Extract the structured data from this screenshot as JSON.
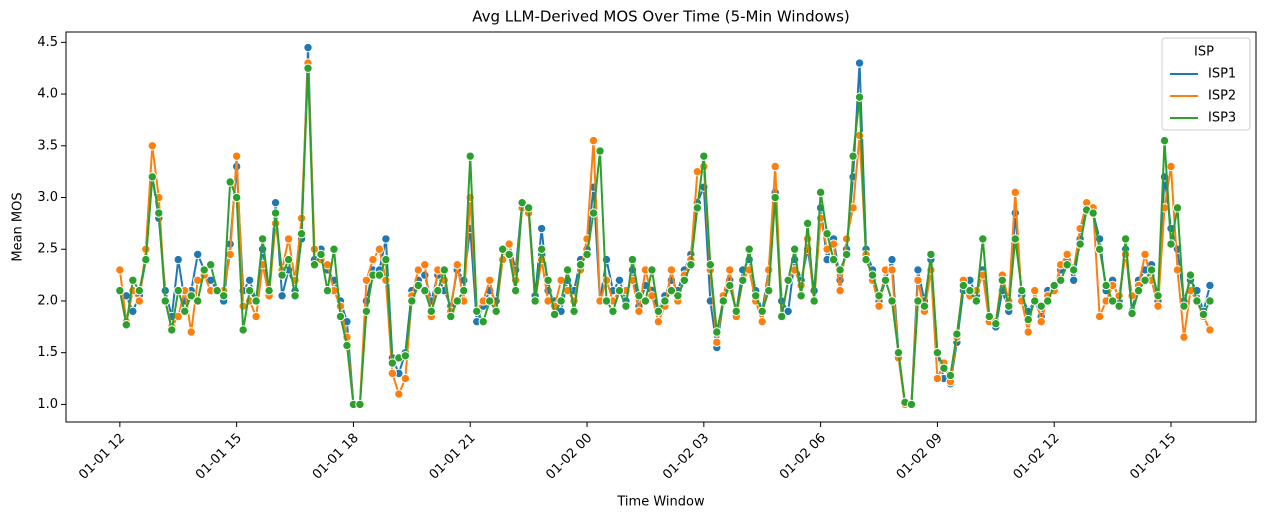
{
  "chart_data": {
    "type": "line",
    "title": "Avg LLM-Derived MOS Over Time (5-Min Windows)",
    "x_label": "Time Window",
    "y_label": "Mean MOS",
    "legend_title": "ISP",
    "legend": "upper right",
    "grid": false,
    "xlim": [
      637,
      2471
    ],
    "xticks": [
      {
        "value": 720,
        "label": "01-01 12"
      },
      {
        "value": 900,
        "label": "01-01 15"
      },
      {
        "value": 1080,
        "label": "01-01 18"
      },
      {
        "value": 1260,
        "label": "01-01 21"
      },
      {
        "value": 1440,
        "label": "01-02 00"
      },
      {
        "value": 1620,
        "label": "01-02 03"
      },
      {
        "value": 1800,
        "label": "01-02 06"
      },
      {
        "value": 1980,
        "label": "01-02 09"
      },
      {
        "value": 2160,
        "label": "01-02 12"
      },
      {
        "value": 2340,
        "label": "01-02 15"
      }
    ],
    "ylim": [
      0.83,
      4.6
    ],
    "yticks": [
      {
        "value": 1,
        "label": "1.0"
      },
      {
        "value": 1.5,
        "label": "1.5"
      },
      {
        "value": 2,
        "label": "2.0"
      },
      {
        "value": 2.5,
        "label": "2.5"
      },
      {
        "value": 3,
        "label": "3.0"
      },
      {
        "value": 3.5,
        "label": "3.5"
      },
      {
        "value": 4,
        "label": "4.0"
      },
      {
        "value": 4.5,
        "label": "4.5"
      }
    ],
    "x": [
      720,
      730,
      740,
      750,
      760,
      770,
      780,
      790,
      800,
      810,
      820,
      830,
      840,
      850,
      860,
      870,
      880,
      890,
      900,
      910,
      920,
      930,
      940,
      950,
      960,
      970,
      980,
      990,
      1000,
      1010,
      1020,
      1030,
      1040,
      1050,
      1060,
      1070,
      1080,
      1090,
      1100,
      1110,
      1120,
      1130,
      1140,
      1150,
      1160,
      1170,
      1180,
      1190,
      1200,
      1210,
      1220,
      1230,
      1240,
      1250,
      1260,
      1270,
      1280,
      1290,
      1300,
      1310,
      1320,
      1330,
      1340,
      1350,
      1360,
      1370,
      1380,
      1390,
      1400,
      1410,
      1420,
      1430,
      1440,
      1450,
      1460,
      1470,
      1480,
      1490,
      1500,
      1510,
      1520,
      1530,
      1540,
      1550,
      1560,
      1570,
      1580,
      1590,
      1600,
      1610,
      1620,
      1630,
      1640,
      1650,
      1660,
      1670,
      1680,
      1690,
      1700,
      1710,
      1720,
      1730,
      1740,
      1750,
      1760,
      1770,
      1780,
      1790,
      1800,
      1810,
      1820,
      1830,
      1840,
      1850,
      1860,
      1870,
      1880,
      1890,
      1900,
      1910,
      1920,
      1930,
      1940,
      1950,
      1960,
      1970,
      1980,
      1990,
      2000,
      2010,
      2020,
      2030,
      2040,
      2050,
      2060,
      2070,
      2080,
      2090,
      2100,
      2110,
      2120,
      2130,
      2140,
      2150,
      2160,
      2170,
      2180,
      2190,
      2200,
      2210,
      2220,
      2230,
      2240,
      2250,
      2260,
      2270,
      2280,
      2290,
      2300,
      2310,
      2320,
      2330,
      2340,
      2350,
      2360,
      2370,
      2380,
      2390,
      2400
    ],
    "series": [
      {
        "name": "ISP1",
        "color": "#1f77b4",
        "values": [
          2.1,
          2.05,
          1.9,
          2.05,
          2.4,
          3.2,
          2.8,
          2.1,
          1.85,
          2.4,
          2.0,
          2.1,
          2.45,
          2.3,
          2.2,
          2.1,
          2.0,
          2.55,
          3.3,
          2.1,
          2.2,
          2.0,
          2.5,
          2.1,
          2.95,
          2.05,
          2.3,
          2.1,
          2.6,
          4.45,
          2.4,
          2.5,
          2.3,
          2.2,
          2.0,
          1.8,
          1.0,
          1.0,
          2.0,
          2.3,
          2.3,
          2.6,
          1.45,
          1.3,
          1.5,
          2.1,
          2.2,
          2.25,
          2.0,
          2.25,
          2.1,
          1.95,
          2.3,
          2.2,
          2.7,
          1.8,
          1.95,
          2.1,
          2.0,
          2.5,
          2.55,
          2.3,
          2.95,
          2.9,
          2.05,
          2.7,
          2.1,
          2.0,
          1.9,
          2.2,
          2.1,
          2.4,
          2.5,
          3.1,
          2.0,
          2.4,
          2.1,
          2.2,
          2.0,
          2.3,
          1.95,
          2.15,
          2.1,
          1.9,
          2.05,
          2.2,
          2.1,
          2.3,
          2.45,
          2.95,
          3.1,
          2.0,
          1.55,
          2.0,
          2.2,
          1.9,
          2.3,
          2.4,
          2.1,
          1.9,
          2.3,
          3.05,
          2.0,
          1.9,
          2.4,
          2.2,
          2.5,
          2.1,
          2.9,
          2.4,
          2.6,
          2.2,
          2.5,
          3.2,
          4.3,
          2.5,
          2.3,
          2.0,
          2.2,
          2.4,
          1.5,
          1.0,
          1.0,
          2.3,
          2.0,
          2.4,
          1.5,
          1.25,
          1.2,
          1.6,
          2.1,
          2.2,
          2.05,
          2.3,
          1.8,
          1.75,
          2.1,
          1.9,
          2.85,
          2.05,
          1.9,
          2.0,
          1.85,
          2.1,
          2.1,
          2.3,
          2.4,
          2.2,
          2.6,
          2.9,
          2.85,
          2.6,
          2.1,
          2.2,
          2.0,
          2.5,
          1.9,
          2.2,
          2.3,
          2.35,
          2.0,
          3.2,
          2.7,
          2.5,
          2.0,
          2.2,
          2.1,
          1.9,
          2.15
        ]
      },
      {
        "name": "ISP2",
        "color": "#ff7f0e",
        "values": [
          2.3,
          1.8,
          2.1,
          2.0,
          2.5,
          3.5,
          3.0,
          2.0,
          1.75,
          1.85,
          2.1,
          1.7,
          2.2,
          2.25,
          2.1,
          2.1,
          2.1,
          2.45,
          3.4,
          1.95,
          2.0,
          1.85,
          2.35,
          2.05,
          2.75,
          2.3,
          2.6,
          2.2,
          2.8,
          4.3,
          2.5,
          2.4,
          2.35,
          2.1,
          1.95,
          1.65,
          1.0,
          1.0,
          2.2,
          2.4,
          2.5,
          2.2,
          1.3,
          1.1,
          1.25,
          2.05,
          2.3,
          2.35,
          1.85,
          2.3,
          2.2,
          1.9,
          2.35,
          2.0,
          3.0,
          1.9,
          2.0,
          2.2,
          1.9,
          2.4,
          2.55,
          2.2,
          2.9,
          2.85,
          2.0,
          2.4,
          2.0,
          1.95,
          2.2,
          2.1,
          2.0,
          2.3,
          2.6,
          3.55,
          2.0,
          2.2,
          2.0,
          2.1,
          2.1,
          2.2,
          1.9,
          2.3,
          2.05,
          1.8,
          1.95,
          2.3,
          2.0,
          2.25,
          2.4,
          3.25,
          3.3,
          2.3,
          1.6,
          2.05,
          2.3,
          1.85,
          2.2,
          2.3,
          2.0,
          1.8,
          2.3,
          3.3,
          1.85,
          2.2,
          2.3,
          2.15,
          2.6,
          2.0,
          2.8,
          2.5,
          2.55,
          2.1,
          2.6,
          2.9,
          3.6,
          2.45,
          2.2,
          1.95,
          2.3,
          2.3,
          1.45,
          1.0,
          1.0,
          2.2,
          1.9,
          2.3,
          1.25,
          1.4,
          1.22,
          1.65,
          2.2,
          2.05,
          2.1,
          2.25,
          1.8,
          1.8,
          2.25,
          2.0,
          3.05,
          2.0,
          1.7,
          2.1,
          1.8,
          2.05,
          2.1,
          2.35,
          2.45,
          2.3,
          2.7,
          2.95,
          2.9,
          1.85,
          2.0,
          2.15,
          2.05,
          2.45,
          2.05,
          2.15,
          2.45,
          2.2,
          1.95,
          2.9,
          3.3,
          2.3,
          1.65,
          2.1,
          2.0,
          1.85,
          1.72
        ]
      },
      {
        "name": "ISP3",
        "color": "#2ca02c",
        "values": [
          2.1,
          1.77,
          2.2,
          2.1,
          2.4,
          3.2,
          2.85,
          2.0,
          1.72,
          2.1,
          1.9,
          2.05,
          2.0,
          2.3,
          2.35,
          2.1,
          2.05,
          3.15,
          3.0,
          1.72,
          2.1,
          2.0,
          2.6,
          2.1,
          2.85,
          2.25,
          2.4,
          2.05,
          2.65,
          4.25,
          2.35,
          2.45,
          2.1,
          2.5,
          1.85,
          1.57,
          1.0,
          1.0,
          1.9,
          2.25,
          2.25,
          2.4,
          1.4,
          1.45,
          1.47,
          2.0,
          2.15,
          2.1,
          1.9,
          2.1,
          2.3,
          1.85,
          2.0,
          2.1,
          3.4,
          1.9,
          1.8,
          2.0,
          1.9,
          2.5,
          2.45,
          2.1,
          2.95,
          2.9,
          2.0,
          2.5,
          2.2,
          1.87,
          2.0,
          2.3,
          1.9,
          2.35,
          2.45,
          2.85,
          3.45,
          2.0,
          1.9,
          2.1,
          1.95,
          2.4,
          2.05,
          2.0,
          2.3,
          1.9,
          2.0,
          2.1,
          2.05,
          2.2,
          2.35,
          2.9,
          3.4,
          2.35,
          1.7,
          2.0,
          2.15,
          1.9,
          2.2,
          2.5,
          2.05,
          1.9,
          2.1,
          3.0,
          1.85,
          2.2,
          2.5,
          2.05,
          2.75,
          2.0,
          3.05,
          2.65,
          2.4,
          2.3,
          2.45,
          3.4,
          3.97,
          2.4,
          2.25,
          2.05,
          2.2,
          2.0,
          1.5,
          1.02,
          1.0,
          2.0,
          1.95,
          2.45,
          1.5,
          1.35,
          1.28,
          1.68,
          2.15,
          2.1,
          2.0,
          2.6,
          1.85,
          1.78,
          2.2,
          1.95,
          2.6,
          2.1,
          1.82,
          2.0,
          1.95,
          2.0,
          2.15,
          2.2,
          2.35,
          2.3,
          2.55,
          2.88,
          2.85,
          2.5,
          2.15,
          2.0,
          1.95,
          2.6,
          1.88,
          2.1,
          2.2,
          2.3,
          2.05,
          3.55,
          2.55,
          2.9,
          1.95,
          2.25,
          2.0,
          1.87,
          2.0
        ]
      }
    ]
  }
}
